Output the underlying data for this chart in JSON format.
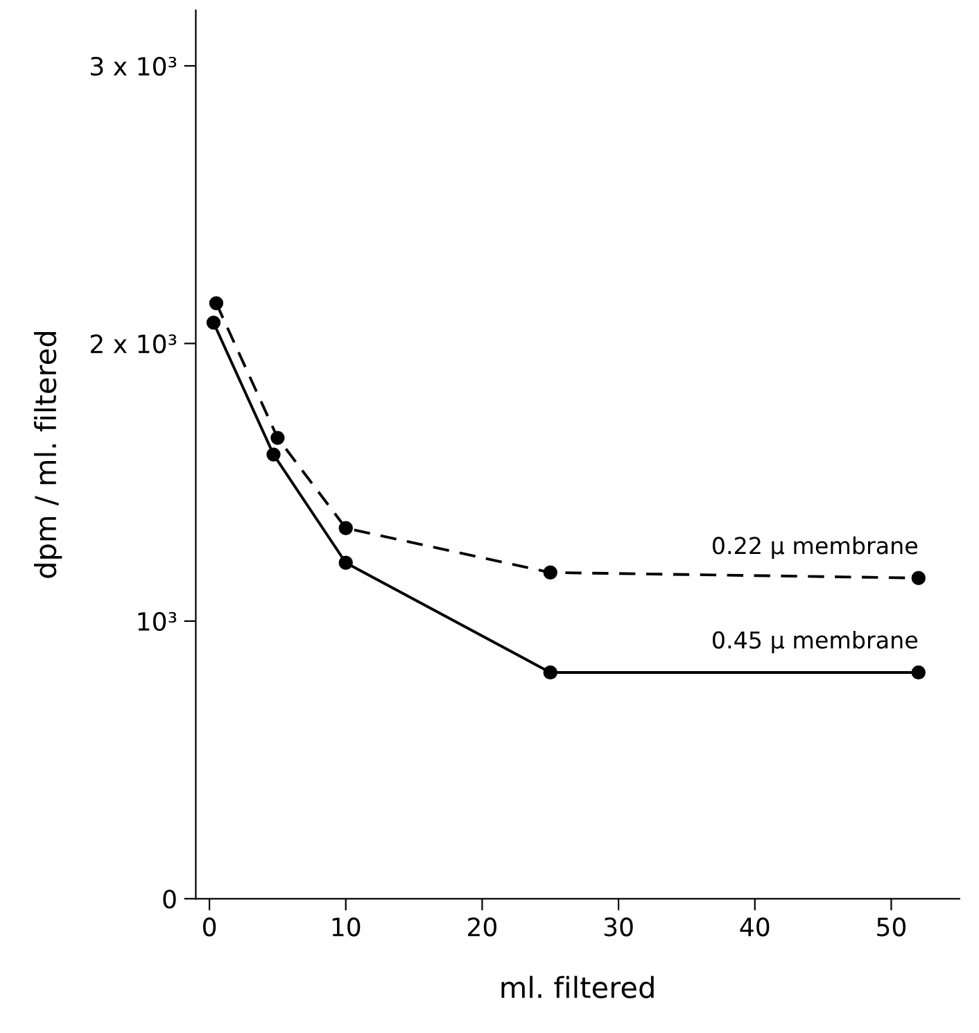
{
  "chart_data": {
    "type": "line",
    "xlabel": "ml. filtered",
    "ylabel": "dpm / ml. filtered",
    "xlim": [
      -1,
      55
    ],
    "xticks": [
      0,
      10,
      20,
      30,
      40,
      50
    ],
    "ylim": [
      0,
      3200
    ],
    "yticks": [
      0,
      {
        "value": 1000,
        "label": "10³"
      },
      {
        "value": 2000,
        "label": "2 x 10³"
      },
      {
        "value": 3000,
        "label": "3 x 10³"
      }
    ],
    "marker": "circle",
    "grid": false,
    "legend": false,
    "series": [
      {
        "name": "0.22 μ membrane",
        "color": "#000000",
        "line_style": "dashed",
        "x": [
          0.5,
          5,
          10,
          25,
          52
        ],
        "values": [
          2145,
          1660,
          1335,
          1175,
          1155
        ]
      },
      {
        "name": "0.45 μ membrane",
        "color": "#000000",
        "line_style": "solid",
        "x": [
          0.3,
          4.7,
          10,
          25,
          52
        ],
        "values": [
          2075,
          1600,
          1210,
          815,
          815
        ]
      }
    ]
  }
}
